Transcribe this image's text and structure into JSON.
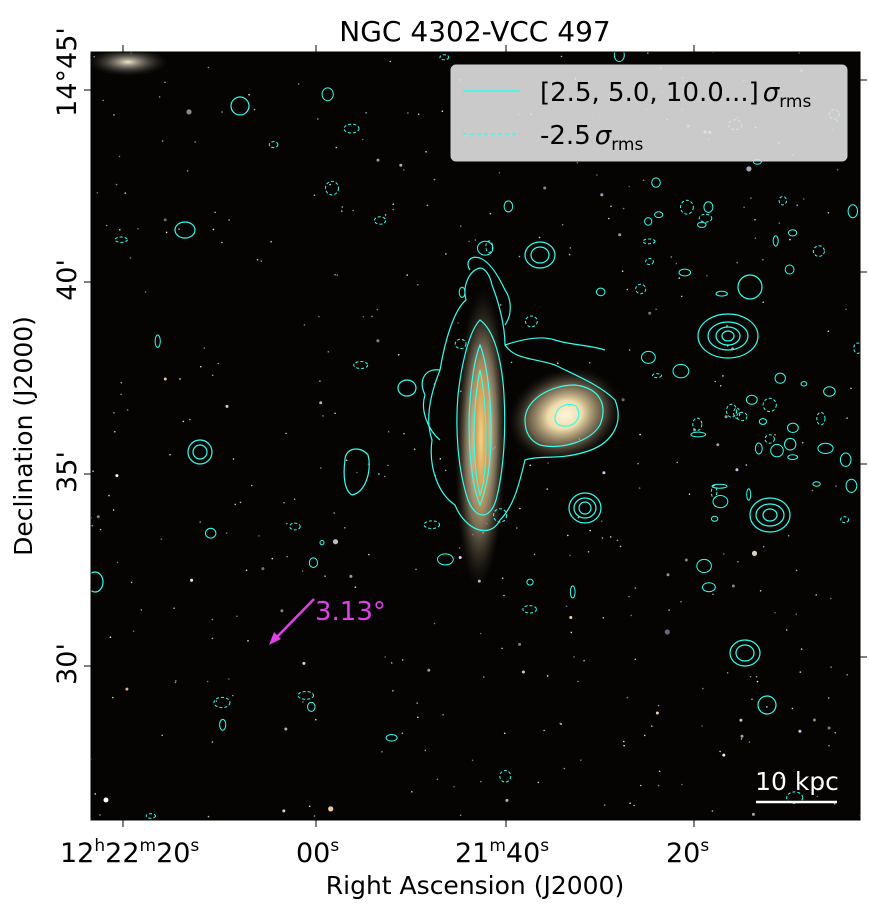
{
  "figure": {
    "title": "NGC 4302-VCC 497",
    "xlabel": "Right Ascension (J2000)",
    "ylabel": "Declination (J2000)"
  },
  "axes": {
    "ra_ticks": [
      {
        "h": "12",
        "m": "22",
        "s": "20",
        "label": "12h22m20s"
      },
      {
        "s": "00",
        "label": "00s"
      },
      {
        "h": "",
        "m": "21",
        "s": "40",
        "label": "21m40s"
      },
      {
        "s": "20",
        "label": "20s"
      }
    ],
    "dec_ticks": [
      {
        "label": "14°45'",
        "arcmin": 45
      },
      {
        "label": "40'",
        "arcmin": 40
      },
      {
        "label": "35'",
        "arcmin": 35
      },
      {
        "label": "30'",
        "arcmin": 30
      }
    ],
    "ra_prefix": {
      "h": "12",
      "m": "22",
      "s": "20"
    },
    "ra_m21": "21",
    "ra_s40": "40",
    "ra_s00": "00",
    "ra_s20": "20"
  },
  "legend": {
    "solid": {
      "prefix": "[2.5, 5.0, 10.0...]",
      "sigma": "σ",
      "sub": "rms"
    },
    "dashed": {
      "prefix": "-2.5",
      "sigma": "σ",
      "sub": "rms"
    },
    "placement": "top-right"
  },
  "annotations": {
    "angle_label": "3.13°",
    "scalebar_label": "10 kpc"
  },
  "colors": {
    "contour": "#33ffee",
    "arrow": "#e040e8",
    "background": "#050403",
    "scalebar": "#ffffff"
  }
}
